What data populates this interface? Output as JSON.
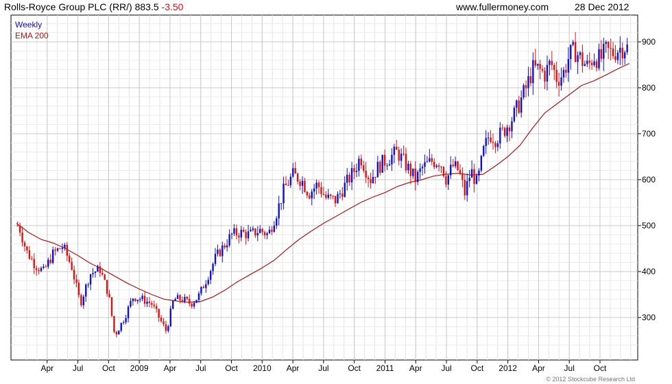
{
  "header": {
    "title": "Rolls-Royce Group PLC (RR/) 883.5",
    "change": "-3.50",
    "site": "www.fullermoney.com",
    "date": "28 Dec 2012"
  },
  "legend": {
    "frequency": "Weekly",
    "ema": "EMA 200"
  },
  "copyright": "© 2012 Stockcube Research Ltd",
  "colors": {
    "up": "#1010c8",
    "down": "#e01010",
    "ema": "#a01818",
    "grid": "#c8c8c8"
  },
  "chart_data": {
    "type": "candlestick",
    "title": "Rolls-Royce Group PLC (RR/) 883.5 -3.50",
    "xlabel": "",
    "ylabel": "",
    "ylim": [
      225,
      960
    ],
    "xlim": [
      2008.0,
      2012.99
    ],
    "yticks": [
      300,
      400,
      500,
      600,
      700,
      800,
      900
    ],
    "xticks": [
      {
        "label": "Apr",
        "x": 2008.25
      },
      {
        "label": "Jul",
        "x": 2008.5
      },
      {
        "label": "Oct",
        "x": 2008.75
      },
      {
        "label": "2009",
        "x": 2009.0
      },
      {
        "label": "Apr",
        "x": 2009.25
      },
      {
        "label": "Jul",
        "x": 2009.5
      },
      {
        "label": "Oct",
        "x": 2009.75
      },
      {
        "label": "2010",
        "x": 2010.0
      },
      {
        "label": "Apr",
        "x": 2010.25
      },
      {
        "label": "Jul",
        "x": 2010.5
      },
      {
        "label": "Oct",
        "x": 2010.75
      },
      {
        "label": "2011",
        "x": 2011.0
      },
      {
        "label": "Apr",
        "x": 2011.25
      },
      {
        "label": "Jul",
        "x": 2011.5
      },
      {
        "label": "Oct",
        "x": 2011.75
      },
      {
        "label": "2012",
        "x": 2012.0
      },
      {
        "label": "Apr",
        "x": 2012.25
      },
      {
        "label": "Jul",
        "x": 2012.5
      },
      {
        "label": "Oct",
        "x": 2012.75
      }
    ],
    "price_path": [
      [
        2008.02,
        500
      ],
      [
        2008.08,
        445
      ],
      [
        2008.15,
        415
      ],
      [
        2008.22,
        400
      ],
      [
        2008.3,
        440
      ],
      [
        2008.38,
        455
      ],
      [
        2008.45,
        410
      ],
      [
        2008.52,
        330
      ],
      [
        2008.6,
        395
      ],
      [
        2008.68,
        405
      ],
      [
        2008.75,
        350
      ],
      [
        2008.8,
        260
      ],
      [
        2008.88,
        300
      ],
      [
        2008.95,
        345
      ],
      [
        2009.02,
        340
      ],
      [
        2009.1,
        330
      ],
      [
        2009.18,
        290
      ],
      [
        2009.22,
        270
      ],
      [
        2009.28,
        340
      ],
      [
        2009.35,
        340
      ],
      [
        2009.42,
        330
      ],
      [
        2009.48,
        345
      ],
      [
        2009.55,
        385
      ],
      [
        2009.62,
        430
      ],
      [
        2009.7,
        460
      ],
      [
        2009.75,
        480
      ],
      [
        2009.82,
        485
      ],
      [
        2009.9,
        480
      ],
      [
        2009.98,
        490
      ],
      [
        2010.05,
        480
      ],
      [
        2010.12,
        530
      ],
      [
        2010.18,
        580
      ],
      [
        2010.25,
        610
      ],
      [
        2010.32,
        600
      ],
      [
        2010.38,
        570
      ],
      [
        2010.45,
        590
      ],
      [
        2010.52,
        560
      ],
      [
        2010.6,
        555
      ],
      [
        2010.68,
        590
      ],
      [
        2010.75,
        620
      ],
      [
        2010.8,
        650
      ],
      [
        2010.88,
        600
      ],
      [
        2010.95,
        630
      ],
      [
        2011.02,
        645
      ],
      [
        2011.1,
        660
      ],
      [
        2011.15,
        640
      ],
      [
        2011.2,
        620
      ],
      [
        2011.25,
        600
      ],
      [
        2011.3,
        625
      ],
      [
        2011.38,
        640
      ],
      [
        2011.45,
        640
      ],
      [
        2011.5,
        600
      ],
      [
        2011.55,
        630
      ],
      [
        2011.6,
        620
      ],
      [
        2011.65,
        570
      ],
      [
        2011.7,
        620
      ],
      [
        2011.75,
        590
      ],
      [
        2011.8,
        660
      ],
      [
        2011.85,
        700
      ],
      [
        2011.9,
        690
      ],
      [
        2011.95,
        700
      ],
      [
        2012.0,
        720
      ],
      [
        2012.05,
        740
      ],
      [
        2012.1,
        770
      ],
      [
        2012.15,
        800
      ],
      [
        2012.2,
        840
      ],
      [
        2012.25,
        840
      ],
      [
        2012.3,
        830
      ],
      [
        2012.35,
        855
      ],
      [
        2012.4,
        820
      ],
      [
        2012.45,
        830
      ],
      [
        2012.5,
        870
      ],
      [
        2012.55,
        880
      ],
      [
        2012.6,
        860
      ],
      [
        2012.65,
        845
      ],
      [
        2012.7,
        870
      ],
      [
        2012.75,
        860
      ],
      [
        2012.8,
        880
      ],
      [
        2012.85,
        875
      ],
      [
        2012.9,
        885
      ],
      [
        2012.95,
        890
      ],
      [
        2012.99,
        883.5
      ]
    ],
    "ema_path": [
      [
        2008.0,
        505
      ],
      [
        2008.1,
        485
      ],
      [
        2008.2,
        470
      ],
      [
        2008.3,
        462
      ],
      [
        2008.4,
        450
      ],
      [
        2008.5,
        435
      ],
      [
        2008.6,
        418
      ],
      [
        2008.7,
        405
      ],
      [
        2008.8,
        390
      ],
      [
        2008.9,
        375
      ],
      [
        2009.0,
        362
      ],
      [
        2009.1,
        350
      ],
      [
        2009.2,
        340
      ],
      [
        2009.3,
        336
      ],
      [
        2009.4,
        333
      ],
      [
        2009.5,
        335
      ],
      [
        2009.6,
        345
      ],
      [
        2009.7,
        360
      ],
      [
        2009.8,
        378
      ],
      [
        2009.9,
        393
      ],
      [
        2010.0,
        408
      ],
      [
        2010.1,
        425
      ],
      [
        2010.2,
        448
      ],
      [
        2010.3,
        470
      ],
      [
        2010.4,
        488
      ],
      [
        2010.5,
        505
      ],
      [
        2010.6,
        520
      ],
      [
        2010.7,
        535
      ],
      [
        2010.8,
        550
      ],
      [
        2010.9,
        562
      ],
      [
        2011.0,
        572
      ],
      [
        2011.1,
        585
      ],
      [
        2011.2,
        594
      ],
      [
        2011.3,
        600
      ],
      [
        2011.4,
        608
      ],
      [
        2011.5,
        612
      ],
      [
        2011.6,
        614
      ],
      [
        2011.7,
        610
      ],
      [
        2011.8,
        612
      ],
      [
        2011.9,
        630
      ],
      [
        2012.0,
        650
      ],
      [
        2012.1,
        675
      ],
      [
        2012.2,
        712
      ],
      [
        2012.3,
        745
      ],
      [
        2012.4,
        765
      ],
      [
        2012.5,
        785
      ],
      [
        2012.6,
        805
      ],
      [
        2012.7,
        815
      ],
      [
        2012.8,
        828
      ],
      [
        2012.9,
        842
      ],
      [
        2012.99,
        853
      ]
    ]
  }
}
